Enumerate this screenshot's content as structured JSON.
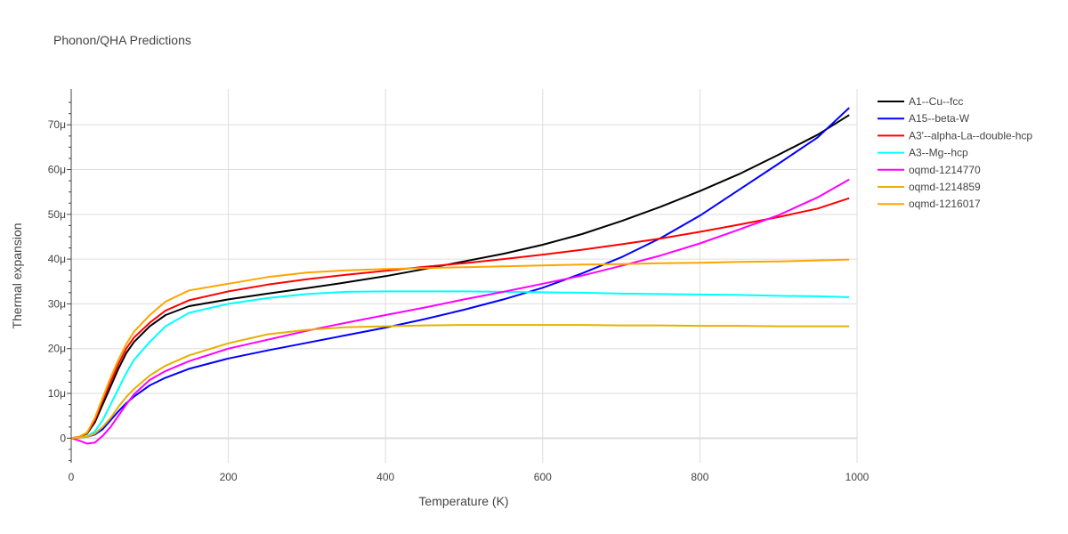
{
  "chart_data": {
    "type": "line",
    "title": "Phonon/QHA Predictions",
    "xlabel": "Temperature (K)",
    "ylabel": "Thermal expansion",
    "xlim": [
      0,
      1000
    ],
    "ylim": [
      -5.5e-06,
      7.8e-05
    ],
    "x_ticks": [
      0,
      200,
      400,
      600,
      800,
      1000
    ],
    "x_tick_labels": [
      "0",
      "200",
      "400",
      "600",
      "800",
      "1000"
    ],
    "y_ticks": [
      0,
      1e-05,
      2e-05,
      3e-05,
      4e-05,
      5e-05,
      6e-05,
      7e-05
    ],
    "y_tick_labels": [
      "0",
      "10μ",
      "20μ",
      "30μ",
      "40μ",
      "50μ",
      "60μ",
      "70μ"
    ],
    "grid": true,
    "legend_position": "right",
    "series": [
      {
        "name": "A1--Cu--fcc",
        "color": "#000000",
        "points": [
          [
            0,
            0
          ],
          [
            10,
            3e-07
          ],
          [
            20,
            1e-06
          ],
          [
            30,
            3.5e-06
          ],
          [
            40,
            7.5e-06
          ],
          [
            50,
            1.15e-05
          ],
          [
            60,
            1.55e-05
          ],
          [
            70,
            1.9e-05
          ],
          [
            80,
            2.15e-05
          ],
          [
            100,
            2.5e-05
          ],
          [
            120,
            2.75e-05
          ],
          [
            150,
            2.95e-05
          ],
          [
            200,
            3.1e-05
          ],
          [
            250,
            3.23e-05
          ],
          [
            300,
            3.35e-05
          ],
          [
            350,
            3.48e-05
          ],
          [
            400,
            3.62e-05
          ],
          [
            450,
            3.78e-05
          ],
          [
            500,
            3.95e-05
          ],
          [
            550,
            4.12e-05
          ],
          [
            600,
            4.32e-05
          ],
          [
            650,
            4.56e-05
          ],
          [
            700,
            4.85e-05
          ],
          [
            750,
            5.17e-05
          ],
          [
            800,
            5.52e-05
          ],
          [
            850,
            5.9e-05
          ],
          [
            900,
            6.33e-05
          ],
          [
            950,
            6.78e-05
          ],
          [
            990,
            7.22e-05
          ]
        ]
      },
      {
        "name": "A15--beta-W",
        "color": "#0000ff",
        "points": [
          [
            0,
            0
          ],
          [
            10,
            1e-07
          ],
          [
            20,
            3e-07
          ],
          [
            30,
            8e-07
          ],
          [
            40,
            2e-06
          ],
          [
            50,
            4e-06
          ],
          [
            60,
            6e-06
          ],
          [
            70,
            7.8e-06
          ],
          [
            80,
            9.3e-06
          ],
          [
            100,
            1.18e-05
          ],
          [
            120,
            1.35e-05
          ],
          [
            150,
            1.55e-05
          ],
          [
            200,
            1.78e-05
          ],
          [
            250,
            1.96e-05
          ],
          [
            300,
            2.13e-05
          ],
          [
            350,
            2.3e-05
          ],
          [
            400,
            2.47e-05
          ],
          [
            450,
            2.66e-05
          ],
          [
            500,
            2.87e-05
          ],
          [
            550,
            3.1e-05
          ],
          [
            600,
            3.36e-05
          ],
          [
            650,
            3.68e-05
          ],
          [
            700,
            4.04e-05
          ],
          [
            750,
            4.47e-05
          ],
          [
            800,
            4.97e-05
          ],
          [
            850,
            5.55e-05
          ],
          [
            900,
            6.13e-05
          ],
          [
            950,
            6.72e-05
          ],
          [
            990,
            7.38e-05
          ]
        ]
      },
      {
        "name": "A3'--alpha-La--double-hcp",
        "color": "#ff0000",
        "points": [
          [
            0,
            0
          ],
          [
            10,
            3e-07
          ],
          [
            20,
            1.2e-06
          ],
          [
            30,
            4e-06
          ],
          [
            40,
            8.5e-06
          ],
          [
            50,
            1.25e-05
          ],
          [
            60,
            1.65e-05
          ],
          [
            70,
            2e-05
          ],
          [
            80,
            2.25e-05
          ],
          [
            100,
            2.58e-05
          ],
          [
            120,
            2.85e-05
          ],
          [
            150,
            3.08e-05
          ],
          [
            200,
            3.28e-05
          ],
          [
            250,
            3.43e-05
          ],
          [
            300,
            3.55e-05
          ],
          [
            350,
            3.65e-05
          ],
          [
            400,
            3.74e-05
          ],
          [
            450,
            3.83e-05
          ],
          [
            500,
            3.91e-05
          ],
          [
            550,
            4e-05
          ],
          [
            600,
            4.1e-05
          ],
          [
            650,
            4.21e-05
          ],
          [
            700,
            4.33e-05
          ],
          [
            750,
            4.46e-05
          ],
          [
            800,
            4.61e-05
          ],
          [
            850,
            4.77e-05
          ],
          [
            900,
            4.94e-05
          ],
          [
            950,
            5.13e-05
          ],
          [
            990,
            5.36e-05
          ]
        ]
      },
      {
        "name": "A3--Mg--hcp",
        "color": "#00ffff",
        "points": [
          [
            0,
            0
          ],
          [
            10,
            1e-07
          ],
          [
            20,
            4e-07
          ],
          [
            30,
            1.5e-06
          ],
          [
            40,
            4e-06
          ],
          [
            50,
            7.5e-06
          ],
          [
            60,
            1.1e-05
          ],
          [
            70,
            1.45e-05
          ],
          [
            80,
            1.75e-05
          ],
          [
            100,
            2.15e-05
          ],
          [
            120,
            2.5e-05
          ],
          [
            150,
            2.8e-05
          ],
          [
            200,
            3e-05
          ],
          [
            250,
            3.13e-05
          ],
          [
            300,
            3.22e-05
          ],
          [
            350,
            3.27e-05
          ],
          [
            400,
            3.28e-05
          ],
          [
            450,
            3.28e-05
          ],
          [
            500,
            3.28e-05
          ],
          [
            550,
            3.27e-05
          ],
          [
            600,
            3.26e-05
          ],
          [
            650,
            3.25e-05
          ],
          [
            700,
            3.23e-05
          ],
          [
            750,
            3.22e-05
          ],
          [
            800,
            3.21e-05
          ],
          [
            850,
            3.2e-05
          ],
          [
            900,
            3.18e-05
          ],
          [
            950,
            3.17e-05
          ],
          [
            990,
            3.15e-05
          ]
        ]
      },
      {
        "name": "oqmd-1214770",
        "color": "#ff00ff",
        "points": [
          [
            0,
            0
          ],
          [
            10,
            -5e-07
          ],
          [
            20,
            -1.2e-06
          ],
          [
            30,
            -1e-06
          ],
          [
            40,
            5e-07
          ],
          [
            50,
            2.5e-06
          ],
          [
            60,
            5e-06
          ],
          [
            70,
            7.5e-06
          ],
          [
            80,
            9.8e-06
          ],
          [
            100,
            1.3e-05
          ],
          [
            120,
            1.5e-05
          ],
          [
            150,
            1.72e-05
          ],
          [
            200,
            2e-05
          ],
          [
            250,
            2.2e-05
          ],
          [
            300,
            2.4e-05
          ],
          [
            350,
            2.58e-05
          ],
          [
            400,
            2.75e-05
          ],
          [
            450,
            2.92e-05
          ],
          [
            500,
            3.1e-05
          ],
          [
            550,
            3.27e-05
          ],
          [
            600,
            3.45e-05
          ],
          [
            650,
            3.63e-05
          ],
          [
            700,
            3.85e-05
          ],
          [
            750,
            4.08e-05
          ],
          [
            800,
            4.35e-05
          ],
          [
            850,
            4.66e-05
          ],
          [
            900,
            4.98e-05
          ],
          [
            950,
            5.38e-05
          ],
          [
            990,
            5.78e-05
          ]
        ]
      },
      {
        "name": "oqmd-1214859",
        "color": "#e6b000",
        "points": [
          [
            0,
            0
          ],
          [
            10,
            1e-07
          ],
          [
            20,
            3e-07
          ],
          [
            30,
            1e-06
          ],
          [
            40,
            2.5e-06
          ],
          [
            50,
            4.5e-06
          ],
          [
            60,
            7e-06
          ],
          [
            70,
            9.2e-06
          ],
          [
            80,
            1.1e-05
          ],
          [
            100,
            1.4e-05
          ],
          [
            120,
            1.62e-05
          ],
          [
            150,
            1.85e-05
          ],
          [
            200,
            2.12e-05
          ],
          [
            250,
            2.32e-05
          ],
          [
            300,
            2.42e-05
          ],
          [
            350,
            2.48e-05
          ],
          [
            400,
            2.5e-05
          ],
          [
            450,
            2.52e-05
          ],
          [
            500,
            2.53e-05
          ],
          [
            550,
            2.53e-05
          ],
          [
            600,
            2.53e-05
          ],
          [
            650,
            2.53e-05
          ],
          [
            700,
            2.52e-05
          ],
          [
            750,
            2.52e-05
          ],
          [
            800,
            2.51e-05
          ],
          [
            850,
            2.51e-05
          ],
          [
            900,
            2.5e-05
          ],
          [
            950,
            2.5e-05
          ],
          [
            990,
            2.5e-05
          ]
        ]
      },
      {
        "name": "oqmd-1216017",
        "color": "#ffa500",
        "points": [
          [
            0,
            0
          ],
          [
            10,
            3e-07
          ],
          [
            20,
            1.2e-06
          ],
          [
            30,
            4.5e-06
          ],
          [
            40,
            9e-06
          ],
          [
            50,
            1.35e-05
          ],
          [
            60,
            1.75e-05
          ],
          [
            70,
            2.1e-05
          ],
          [
            80,
            2.38e-05
          ],
          [
            100,
            2.75e-05
          ],
          [
            120,
            3.05e-05
          ],
          [
            150,
            3.3e-05
          ],
          [
            200,
            3.45e-05
          ],
          [
            250,
            3.6e-05
          ],
          [
            300,
            3.7e-05
          ],
          [
            350,
            3.75e-05
          ],
          [
            400,
            3.78e-05
          ],
          [
            450,
            3.8e-05
          ],
          [
            500,
            3.82e-05
          ],
          [
            550,
            3.84e-05
          ],
          [
            600,
            3.86e-05
          ],
          [
            650,
            3.88e-05
          ],
          [
            700,
            3.89e-05
          ],
          [
            750,
            3.91e-05
          ],
          [
            800,
            3.92e-05
          ],
          [
            850,
            3.94e-05
          ],
          [
            900,
            3.95e-05
          ],
          [
            950,
            3.97e-05
          ],
          [
            990,
            3.99e-05
          ]
        ]
      }
    ]
  }
}
